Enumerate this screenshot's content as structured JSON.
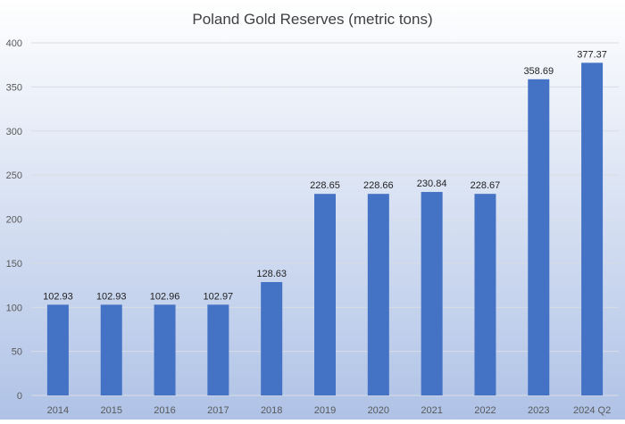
{
  "chart_data": {
    "type": "bar",
    "title": "Poland Gold Reserves (metric tons)",
    "categories": [
      "2014",
      "2015",
      "2016",
      "2017",
      "2018",
      "2019",
      "2020",
      "2021",
      "2022",
      "2023",
      "2024 Q2"
    ],
    "values": [
      102.93,
      102.93,
      102.96,
      102.97,
      128.63,
      228.65,
      228.66,
      230.84,
      228.67,
      358.69,
      377.37
    ],
    "value_labels": [
      "102.93",
      "102.93",
      "102.96",
      "102.97",
      "128.63",
      "228.65",
      "228.66",
      "230.84",
      "228.67",
      "358.69",
      "377.37"
    ],
    "xlabel": "",
    "ylabel": "",
    "ylim": [
      0,
      400
    ],
    "yticks": [
      "0",
      "50",
      "100",
      "150",
      "200",
      "250",
      "300",
      "350",
      "400"
    ],
    "grid": true,
    "legend": "none",
    "colors": {
      "bar": "#4472C4",
      "background_top": "#FFFFFF",
      "background_bottom": "#AFC2E6",
      "grid": "#D9DCE3",
      "text": "#404040",
      "data_label": "#1F1F1F",
      "axis_tick": "#595959"
    }
  }
}
